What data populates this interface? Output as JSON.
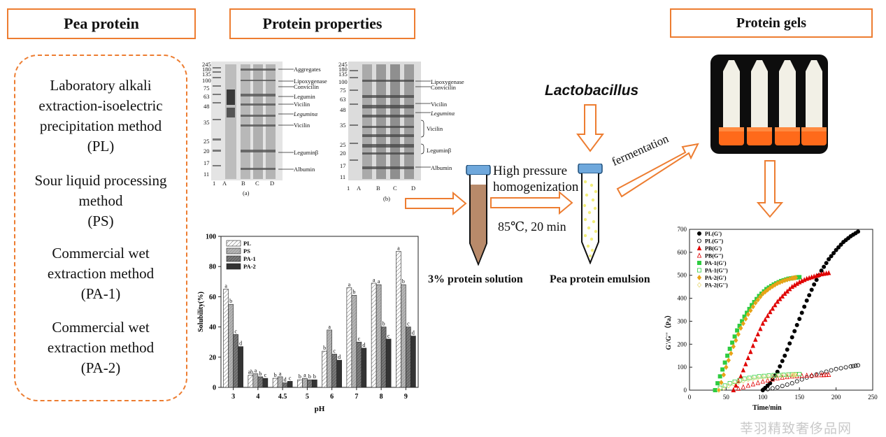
{
  "headers": {
    "pea_protein": "Pea protein",
    "protein_properties": "Protein properties",
    "protein_gels": "Protein gels"
  },
  "methods": [
    "Laboratory alkali\nextraction-isoelectric\nprecipitation method\n(PL)",
    "Sour liquid processing\nmethod\n(PS)",
    "Commercial wet\nextraction method\n(PA-1)",
    "Commercial wet\nextraction method\n(PA-2)"
  ],
  "gel_a": {
    "panel_label": "(a)",
    "lanes": [
      "1",
      "A",
      "B",
      "C",
      "D"
    ],
    "markers": [
      "245",
      "180",
      "135",
      "100",
      "75",
      "63",
      "48",
      "35",
      "25",
      "20",
      "17",
      "11"
    ],
    "bands": [
      "Aggregates",
      "Lipoxygenase",
      "Convicilin",
      "Legumin",
      "Vicilin",
      "Leguminα",
      "Vicilin",
      "Leguminβ",
      "Albumin"
    ]
  },
  "gel_b": {
    "panel_label": "(b)",
    "lanes": [
      "1",
      "A",
      "B",
      "C",
      "D"
    ],
    "markers": [
      "245",
      "180",
      "135",
      "100",
      "75",
      "63",
      "48",
      "35",
      "25",
      "20",
      "17",
      "11"
    ],
    "bands": [
      "Lipoxygenase",
      "Convicilin",
      "Vicilin",
      "Leguminα",
      "Vicilin",
      "Leguminβ",
      "Albumin"
    ]
  },
  "process": {
    "lactobacillus": "Lactobacillus",
    "hph_line1": "High pressure",
    "hph_line2": "homogenization",
    "heat": "85℃, 20 min",
    "fermentation": "fermentation",
    "solution_caption": "3% protein solution",
    "emulsion_caption": "Pea protein emulsion"
  },
  "chart_data": [
    {
      "type": "bar",
      "xlabel": "pH",
      "ylabel": "Solubility(%)",
      "ylim": [
        0,
        100
      ],
      "yticks": [
        0,
        20,
        40,
        60,
        80,
        100
      ],
      "legend_position": "top-left",
      "categories": [
        "3",
        "4",
        "4.5",
        "5",
        "6",
        "7",
        "8",
        "9"
      ],
      "series": [
        {
          "name": "PL",
          "color": "#ffffff",
          "values": [
            65,
            8,
            6,
            5,
            24,
            66,
            69,
            90
          ],
          "letters": [
            "a",
            "ab",
            "b",
            "b",
            "b",
            "a",
            "a",
            "a"
          ]
        },
        {
          "name": "PS",
          "color": "#b0b0b0",
          "values": [
            55,
            9,
            7,
            6,
            38,
            61,
            68,
            68
          ],
          "letters": [
            "b",
            "a",
            "a",
            "a",
            "a",
            "b",
            "a",
            "b"
          ]
        },
        {
          "name": "PA-1",
          "color": "#6e6e6e",
          "values": [
            35,
            7,
            3,
            5,
            22,
            30,
            40,
            40
          ],
          "letters": [
            "c",
            "b",
            "d",
            "b",
            "c",
            "c",
            "b",
            "c"
          ]
        },
        {
          "name": "PA-2",
          "color": "#333333",
          "values": [
            27,
            6,
            4,
            5,
            18,
            26,
            32,
            34
          ],
          "letters": [
            "d",
            "c",
            "c",
            "b",
            "d",
            "d",
            "c",
            "d"
          ]
        }
      ]
    },
    {
      "type": "scatter",
      "xlabel": "Time/min",
      "ylabel": "G'/G''（Pa）",
      "xlim": [
        0,
        250
      ],
      "ylim": [
        0,
        700
      ],
      "xticks": [
        0,
        50,
        100,
        150,
        200,
        250
      ],
      "yticks": [
        0,
        100,
        200,
        300,
        400,
        500,
        600,
        700
      ],
      "legend_position": "top-left",
      "series": [
        {
          "name": "PL(G')",
          "color": "#000000",
          "marker": "circle-filled",
          "x": [
            100,
            110,
            120,
            130,
            140,
            150,
            160,
            170,
            180,
            190,
            200,
            210,
            220,
            230
          ],
          "y": [
            0,
            30,
            80,
            150,
            230,
            310,
            390,
            460,
            520,
            570,
            610,
            645,
            670,
            690
          ]
        },
        {
          "name": "PL(G'')",
          "color": "#000000",
          "marker": "circle-open",
          "x": [
            100,
            120,
            140,
            160,
            180,
            200,
            220,
            230
          ],
          "y": [
            0,
            12,
            30,
            55,
            75,
            92,
            103,
            108
          ]
        },
        {
          "name": "PB(G')",
          "color": "#e00000",
          "marker": "triangle-filled",
          "x": [
            60,
            70,
            80,
            90,
            100,
            110,
            120,
            130,
            140,
            150,
            160,
            170,
            180,
            190
          ],
          "y": [
            0,
            60,
            140,
            220,
            290,
            340,
            385,
            420,
            450,
            470,
            485,
            495,
            505,
            510
          ]
        },
        {
          "name": "PB(G'')",
          "color": "#e00000",
          "marker": "triangle-open",
          "x": [
            60,
            80,
            100,
            120,
            140,
            160,
            180,
            190
          ],
          "y": [
            0,
            20,
            38,
            52,
            60,
            64,
            66,
            67
          ]
        },
        {
          "name": "PA-1(G')",
          "color": "#2ecc40",
          "marker": "square-filled",
          "x": [
            35,
            45,
            55,
            65,
            75,
            85,
            95,
            105,
            115,
            125,
            135,
            145,
            150
          ],
          "y": [
            0,
            90,
            180,
            260,
            320,
            370,
            410,
            440,
            460,
            475,
            485,
            490,
            492
          ]
        },
        {
          "name": "PA-1(G'')",
          "color": "#2ecc40",
          "marker": "square-open",
          "x": [
            35,
            55,
            75,
            95,
            115,
            135,
            150
          ],
          "y": [
            0,
            30,
            50,
            60,
            65,
            68,
            70
          ]
        },
        {
          "name": "PA-2(G')",
          "color": "#e8a317",
          "marker": "diamond-filled",
          "x": [
            40,
            50,
            60,
            70,
            80,
            90,
            100,
            110,
            120,
            130,
            140,
            145
          ],
          "y": [
            0,
            100,
            190,
            270,
            330,
            380,
            420,
            445,
            465,
            478,
            487,
            490
          ]
        },
        {
          "name": "PA-2(G'')",
          "color": "#e8d97a",
          "marker": "diamond-open",
          "x": [
            40,
            60,
            80,
            100,
            120,
            140,
            145
          ],
          "y": [
            0,
            28,
            46,
            56,
            62,
            66,
            67
          ]
        }
      ]
    }
  ],
  "watermark": "莘羽精致奢侈品网",
  "colors": {
    "accent": "#ED7D31",
    "cap": "#6FA8DC",
    "solution": "#B88A6A",
    "emulsion_dots": "#F2EE7A"
  }
}
